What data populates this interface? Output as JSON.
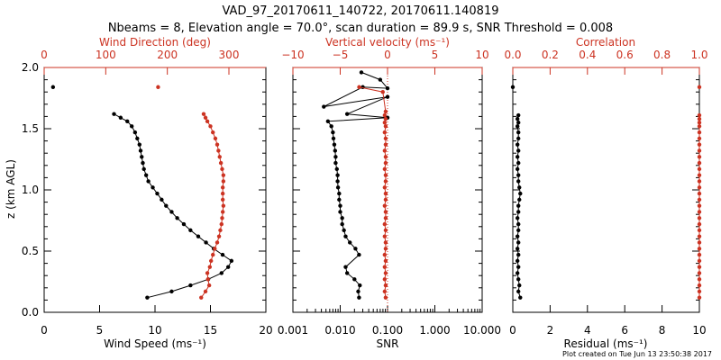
{
  "figure": {
    "title_line1": "VAD_97_20170611_140722, 20170611.140819",
    "title_line2": "Nbeams = 8, Elevation angle = 70.0°, scan duration = 89.9 s, SNR Threshold = 0.008",
    "footer": "Plot created on Tue Jun 13 23:50:38 2017",
    "ylabel": "z (km AGL)",
    "colors": {
      "primary": "#000000",
      "secondary": "#cc3322"
    }
  },
  "chart_data": [
    {
      "type": "line",
      "name": "wind",
      "xlabel": "Wind Speed (ms⁻¹)",
      "x2label": "Wind Direction (deg)",
      "ylabel": "z (km AGL)",
      "xlim": [
        0,
        20
      ],
      "x2lim": [
        0,
        360
      ],
      "ylim": [
        0,
        2
      ],
      "xticks": [
        "0",
        "5",
        "10",
        "15",
        "20"
      ],
      "x2ticks": [
        "0",
        "100",
        "200",
        "300"
      ],
      "yticks": [
        "0.0",
        "0.5",
        "1.0",
        "1.5",
        "2.0"
      ],
      "series": [
        {
          "axis": "bottom",
          "color": "#000000",
          "x": [
            9.3,
            11.5,
            13.2,
            14.8,
            16.0,
            16.6,
            16.9,
            16.1,
            15.3,
            14.6,
            13.9,
            13.2,
            12.6,
            12.0,
            11.5,
            11.0,
            10.6,
            10.2,
            9.8,
            9.4,
            9.2,
            9.0,
            8.9,
            8.8,
            8.7,
            8.6,
            8.4,
            8.2,
            7.9,
            7.5,
            6.9,
            6.3,
            0.8
          ],
          "y": [
            0.12,
            0.17,
            0.22,
            0.27,
            0.32,
            0.37,
            0.42,
            0.47,
            0.52,
            0.57,
            0.62,
            0.67,
            0.72,
            0.77,
            0.82,
            0.87,
            0.92,
            0.97,
            1.02,
            1.07,
            1.12,
            1.17,
            1.22,
            1.27,
            1.32,
            1.37,
            1.42,
            1.47,
            1.52,
            1.56,
            1.59,
            1.62,
            1.84
          ]
        },
        {
          "axis": "top",
          "color": "#cc3322",
          "x": [
            255,
            262,
            268,
            266,
            265,
            269,
            271,
            274,
            277,
            281,
            284,
            286,
            288,
            289,
            290,
            291,
            290,
            290,
            290,
            291,
            291,
            289,
            287,
            285,
            283,
            281,
            278,
            274,
            270,
            265,
            262,
            259,
            185
          ],
          "y": [
            0.12,
            0.17,
            0.22,
            0.27,
            0.32,
            0.37,
            0.42,
            0.47,
            0.52,
            0.57,
            0.62,
            0.67,
            0.72,
            0.77,
            0.82,
            0.87,
            0.92,
            0.97,
            1.02,
            1.07,
            1.12,
            1.17,
            1.22,
            1.27,
            1.32,
            1.37,
            1.42,
            1.47,
            1.52,
            1.56,
            1.59,
            1.62,
            1.84
          ]
        }
      ]
    },
    {
      "type": "line",
      "name": "snr-vvel",
      "xlabel": "SNR",
      "x2label": "Vertical velocity (ms⁻¹)",
      "xscale": "log",
      "xlim": [
        0.001,
        10
      ],
      "x2lim": [
        -10,
        10
      ],
      "ylim": [
        0,
        2
      ],
      "xticks": [
        "0.001",
        "0.010",
        "0.100",
        "1.000",
        "10.000"
      ],
      "x2ticks": [
        "−10",
        "−5",
        "0",
        "5",
        "10"
      ],
      "reference_line_x2": 0,
      "series": [
        {
          "axis": "bottom",
          "color": "#000000",
          "x": [
            0.025,
            0.024,
            0.026,
            0.02,
            0.014,
            0.013,
            0.025,
            0.021,
            0.016,
            0.013,
            0.012,
            0.011,
            0.011,
            0.01,
            0.01,
            0.0095,
            0.0095,
            0.009,
            0.0088,
            0.0088,
            0.0085,
            0.008,
            0.008,
            0.0078,
            0.0075,
            0.0072,
            0.007,
            0.0065,
            0.0055,
            0.1,
            0.014,
            0.1,
            0.0045,
            0.03,
            0.1,
            0.07,
            0.028
          ],
          "y": [
            0.12,
            0.17,
            0.22,
            0.27,
            0.32,
            0.37,
            0.47,
            0.52,
            0.57,
            0.62,
            0.67,
            0.72,
            0.77,
            0.82,
            0.87,
            0.92,
            0.97,
            1.02,
            1.07,
            1.12,
            1.17,
            1.22,
            1.27,
            1.32,
            1.37,
            1.42,
            1.47,
            1.52,
            1.56,
            1.59,
            1.62,
            1.76,
            1.68,
            1.84,
            1.83,
            1.9,
            1.96
          ]
        },
        {
          "axis": "top",
          "color": "#cc3322",
          "x": [
            -0.2,
            -0.3,
            -0.2,
            -0.3,
            -0.2,
            -0.3,
            -0.2,
            -0.3,
            -0.2,
            -0.2,
            -0.3,
            -0.2,
            -0.3,
            -0.2,
            -0.2,
            -0.3,
            -0.2,
            -0.2,
            -0.3,
            -0.2,
            -0.2,
            -0.3,
            -0.2,
            -0.2,
            -0.3,
            -0.2,
            -0.2,
            -0.3,
            -0.2,
            -0.3,
            -0.2,
            -0.3,
            -0.2,
            -0.5,
            -3.0
          ],
          "y": [
            0.12,
            0.17,
            0.22,
            0.27,
            0.32,
            0.37,
            0.42,
            0.47,
            0.52,
            0.57,
            0.62,
            0.67,
            0.72,
            0.77,
            0.82,
            0.87,
            0.92,
            0.97,
            1.02,
            1.07,
            1.12,
            1.17,
            1.22,
            1.27,
            1.32,
            1.37,
            1.42,
            1.47,
            1.52,
            1.55,
            1.58,
            1.61,
            1.64,
            1.8,
            1.84
          ]
        }
      ]
    },
    {
      "type": "line",
      "name": "residual-corr",
      "xlabel": "Residual (ms⁻¹)",
      "x2label": "Correlation",
      "xlim": [
        0,
        10
      ],
      "x2lim": [
        0,
        1
      ],
      "ylim": [
        0,
        2
      ],
      "xticks": [
        "0",
        "2",
        "4",
        "6",
        "8",
        "10"
      ],
      "x2ticks": [
        "0.0",
        "0.2",
        "0.4",
        "0.6",
        "0.8",
        "1.0"
      ],
      "series": [
        {
          "axis": "bottom",
          "color": "#000000",
          "x": [
            0.4,
            0.3,
            0.35,
            0.3,
            0.25,
            0.3,
            0.25,
            0.3,
            0.25,
            0.3,
            0.25,
            0.3,
            0.3,
            0.25,
            0.3,
            0.3,
            0.35,
            0.4,
            0.35,
            0.3,
            0.3,
            0.25,
            0.3,
            0.25,
            0.3,
            0.25,
            0.3,
            0.3,
            0.25,
            0.3,
            0.25,
            0.3,
            0.0
          ],
          "y": [
            0.12,
            0.17,
            0.22,
            0.27,
            0.32,
            0.37,
            0.42,
            0.47,
            0.52,
            0.57,
            0.62,
            0.67,
            0.72,
            0.77,
            0.82,
            0.87,
            0.92,
            0.97,
            1.02,
            1.07,
            1.12,
            1.17,
            1.22,
            1.27,
            1.32,
            1.37,
            1.42,
            1.47,
            1.52,
            1.55,
            1.58,
            1.61,
            1.84
          ]
        },
        {
          "axis": "top",
          "color": "#cc3322",
          "x": [
            1.0,
            1.0,
            1.0,
            1.0,
            1.0,
            1.0,
            1.0,
            1.0,
            1.0,
            1.0,
            1.0,
            1.0,
            1.0,
            1.0,
            1.0,
            1.0,
            1.0,
            1.0,
            1.0,
            1.0,
            1.0,
            1.0,
            1.0,
            1.0,
            1.0,
            1.0,
            1.0,
            1.0,
            1.0,
            1.0,
            1.0,
            1.0,
            1.0
          ],
          "y": [
            0.12,
            0.17,
            0.22,
            0.27,
            0.32,
            0.37,
            0.42,
            0.47,
            0.52,
            0.57,
            0.62,
            0.67,
            0.72,
            0.77,
            0.82,
            0.87,
            0.92,
            0.97,
            1.02,
            1.07,
            1.12,
            1.17,
            1.22,
            1.27,
            1.32,
            1.37,
            1.42,
            1.47,
            1.52,
            1.55,
            1.58,
            1.61,
            1.84
          ]
        }
      ]
    }
  ]
}
